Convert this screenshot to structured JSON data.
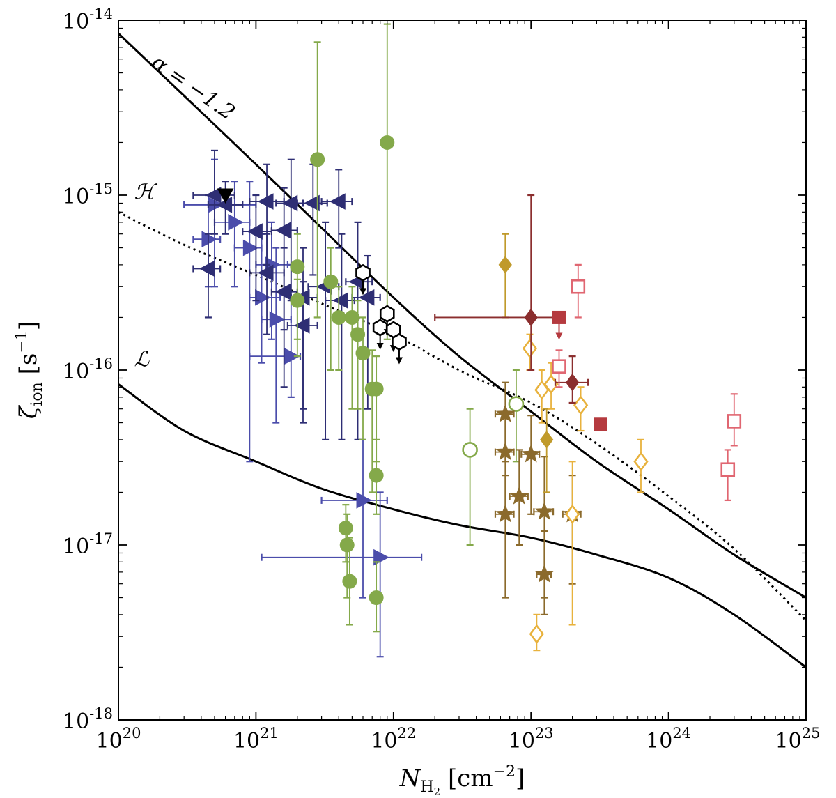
{
  "chart_data": {
    "type": "scatter",
    "title": "",
    "xscale": "log",
    "yscale": "log",
    "xlim": [
      1e+20,
      1e+25
    ],
    "ylim": [
      1e-18,
      1e-14
    ],
    "x_ticks": [
      {
        "base": "10",
        "exp": "20",
        "value": 1e+20
      },
      {
        "base": "10",
        "exp": "21",
        "value": 1e+21
      },
      {
        "base": "10",
        "exp": "22",
        "value": 1e+22
      },
      {
        "base": "10",
        "exp": "23",
        "value": 1e+23
      },
      {
        "base": "10",
        "exp": "24",
        "value": 1e+24
      },
      {
        "base": "10",
        "exp": "25",
        "value": 1e+25
      }
    ],
    "y_ticks": [
      {
        "base": "10",
        "exp": "-18",
        "value": 1e-18
      },
      {
        "base": "10",
        "exp": "-17",
        "value": 1e-17
      },
      {
        "base": "10",
        "exp": "-16",
        "value": 1e-16
      },
      {
        "base": "10",
        "exp": "-15",
        "value": 1e-15
      },
      {
        "base": "10",
        "exp": "-14",
        "value": 1e-14
      }
    ],
    "xlabel": {
      "main": "N",
      "sub": "H",
      "subsub": "2",
      "unit_pre": " [cm",
      "unit_exp": "−2",
      "unit_post": "]"
    },
    "ylabel": {
      "main": "ζ",
      "sub": "ion",
      "unit_pre": " [s",
      "unit_exp": "−1",
      "unit_post": "]"
    },
    "grid": false,
    "annotations": [
      {
        "text": "α = −1.2",
        "x": 1.7e+20,
        "y": 5.5e-15,
        "rotate": true
      },
      {
        "text": "ℋ",
        "x": 1.3e+20,
        "y": 9.5e-16
      },
      {
        "text": "ℒ",
        "x": 1.3e+20,
        "y": 1.05e-16
      }
    ],
    "curves": [
      {
        "name": "",
        "style": "solid",
        "x": [
          1e+20,
          3e+20,
          1e+21,
          3e+21,
          1e+22,
          3e+22,
          1e+23,
          3e+23,
          1e+24,
          3e+24,
          1e+25
        ],
        "y": [
          8.4e-15,
          3.7e-15,
          1.5e-15,
          6.5e-16,
          2.6e-16,
          1.2e-16,
          5.8e-17,
          3e-17,
          1.6e-17,
          8.8e-18,
          5e-18
        ]
      },
      {
        "name": "",
        "style": "dotted",
        "x": [
          1e+20,
          3e+20,
          1e+21,
          3e+21,
          1e+22,
          3e+22,
          1e+23,
          3e+23,
          1e+24,
          3e+24,
          1e+25
        ],
        "y": [
          8e-16,
          5.2e-16,
          3.5e-16,
          2.4e-16,
          1.6e-16,
          1e-16,
          6.5e-17,
          3.8e-17,
          1.9e-17,
          9.5e-18,
          3.7e-18
        ]
      },
      {
        "name": "",
        "style": "solid",
        "x": [
          1e+20,
          3e+20,
          1e+21,
          3e+21,
          1e+22,
          3e+22,
          1e+23,
          3e+23,
          1e+24,
          3e+24,
          1e+25
        ],
        "y": [
          8.3e-17,
          4.5e-17,
          3e-17,
          2.1e-17,
          1.6e-17,
          1.3e-17,
          1.1e-17,
          8.8e-18,
          6.5e-18,
          4e-18,
          2e-18
        ]
      }
    ],
    "series": [
      {
        "name": "",
        "marker": "triangle-right",
        "color": "#4b4dab",
        "filled": true,
        "points": [
          {
            "x": 5e+20,
            "y": 8.8e-16,
            "xerr": [
              3e+20,
              1e+21
            ],
            "yerr": [
              3e-16,
              1.6e-15
            ]
          },
          {
            "x": 7e+20,
            "y": 7e-16,
            "xerr": [
              5e+20,
              9e+20
            ],
            "yerr": [
              3e-16,
              1.2e-15
            ]
          },
          {
            "x": 9e+20,
            "y": 5e-16,
            "xerr": [
              7e+20,
              1.1e+21
            ],
            "yerr": [
              3e-17,
              1.2e-15
            ]
          },
          {
            "x": 1.1e+21,
            "y": 2.6e-16,
            "xerr": [
              9e+20,
              1.5e+21
            ],
            "yerr": [
              1.1e-16,
              6e-16
            ]
          },
          {
            "x": 1.3e+21,
            "y": 4e-16,
            "xerr": [
              1e+21,
              1.7e+21
            ],
            "yerr": [
              1.5e-16,
              7e-16
            ]
          },
          {
            "x": 1.4e+21,
            "y": 1.95e-16,
            "xerr": [
              1.1e+21,
              1.8e+21
            ],
            "yerr": [
              5e-17,
              5e-16
            ]
          },
          {
            "x": 1.8e+21,
            "y": 1.2e-16,
            "xerr": [
              9e+20,
              2.1e+21
            ],
            "yerr": [
              7e-17,
              4e-16
            ]
          },
          {
            "x": 4.5e+20,
            "y": 5.6e-16,
            "xerr": [
              3.5e+20,
              5.5e+20
            ],
            "yerr": [
              3e-16,
              1e-15
            ]
          },
          {
            "x": 6e+21,
            "y": 1.8e-17,
            "xerr": [
              3e+21,
              9e+21
            ],
            "yerr": [
              5e-18,
              4e-17
            ]
          },
          {
            "x": 8e+21,
            "y": 8.5e-18,
            "xerr": [
              1.1e+21,
              1.6e+22
            ],
            "yerr": [
              2.3e-18,
              2e-17
            ]
          }
        ]
      },
      {
        "name": "",
        "marker": "triangle-left",
        "color": "#2e2e74",
        "filled": true,
        "points": [
          {
            "x": 5e+20,
            "y": 1e-15,
            "xerr": [
              3.5e+20,
              7e+20
            ],
            "yerr": [
              6e-16,
              1.8e-15
            ]
          },
          {
            "x": 6e+20,
            "y": 8.8e-16,
            "xerr": [
              4.5e+20,
              8e+20
            ],
            "yerr": [
              6e-16,
              1.2e-15
            ]
          },
          {
            "x": 1.2e+21,
            "y": 9.2e-16,
            "xerr": [
              9e+20,
              1.6e+21
            ],
            "yerr": [
              4e-16,
              1.5e-15
            ]
          },
          {
            "x": 1.8e+21,
            "y": 9e-16,
            "xerr": [
              1.4e+21,
              2.2e+21
            ],
            "yerr": [
              2.5e-16,
              1.6e-15
            ]
          },
          {
            "x": 2.6e+21,
            "y": 9e-16,
            "xerr": [
              2e+21,
              3.3e+21
            ],
            "yerr": [
              3.5e-16,
              1.5e-15
            ]
          },
          {
            "x": 4e+21,
            "y": 9.2e-16,
            "xerr": [
              3e+21,
              5e+21
            ],
            "yerr": [
              5e-16,
              1.4e-15
            ]
          },
          {
            "x": 1e+21,
            "y": 6.2e-16,
            "xerr": [
              8e+20,
              1.3e+21
            ],
            "yerr": [
              2.5e-16,
              1e-15
            ]
          },
          {
            "x": 1.6e+21,
            "y": 6.3e-16,
            "xerr": [
              1.3e+21,
              2e+21
            ],
            "yerr": [
              1.7e-16,
              1.1e-15
            ]
          },
          {
            "x": 4.5e+20,
            "y": 3.8e-16,
            "xerr": [
              3.5e+20,
              5.5e+20
            ],
            "yerr": [
              2e-16,
              6e-16
            ]
          },
          {
            "x": 1.2e+21,
            "y": 3.6e-16,
            "xerr": [
              9e+20,
              1.6e+21
            ],
            "yerr": [
              1.6e-16,
              6e-16
            ]
          },
          {
            "x": 1.6e+21,
            "y": 2.8e-16,
            "xerr": [
              1.3e+21,
              2e+21
            ],
            "yerr": [
              8e-17,
              5e-16
            ]
          },
          {
            "x": 2.2e+21,
            "y": 2.6e-16,
            "xerr": [
              1.8e+21,
              2.8e+21
            ],
            "yerr": [
              6e-17,
              5e-16
            ]
          },
          {
            "x": 2.2e+21,
            "y": 1.8e-16,
            "xerr": [
              1.7e+21,
              2.8e+21
            ],
            "yerr": [
              5e-17,
              3.2e-16
            ]
          },
          {
            "x": 3.2e+21,
            "y": 3e-16,
            "xerr": [
              2.4e+21,
              4e+21
            ],
            "yerr": [
              4e-17,
              7e-16
            ]
          },
          {
            "x": 4.2e+21,
            "y": 2.5e-16,
            "xerr": [
              3.2e+21,
              5.2e+21
            ],
            "yerr": [
              4e-17,
              6e-16
            ]
          },
          {
            "x": 5.5e+21,
            "y": 3.2e-16,
            "xerr": [
              4.5e+21,
              7e+21
            ],
            "yerr": [
              4e-17,
              7e-16
            ]
          },
          {
            "x": 6.5e+21,
            "y": 2.6e-16,
            "xerr": [
              5e+21,
              8e+21
            ],
            "yerr": [
              6e-17,
              4.5e-16
            ]
          }
        ]
      },
      {
        "name": "",
        "marker": "circle",
        "color": "#84a94a",
        "filled": true,
        "points": [
          {
            "x": 2.8e+21,
            "y": 1.6e-15,
            "yerr": [
              2e-16,
              7.5e-15
            ]
          },
          {
            "x": 9e+21,
            "y": 2e-15,
            "yerr": [
              1.5e-16,
              9.5e-15
            ]
          },
          {
            "x": 2e+21,
            "y": 3.9e-16,
            "yerr": [
              1.2e-16,
              6e-16
            ]
          },
          {
            "x": 2e+21,
            "y": 2.5e-16,
            "yerr": [
              1.5e-16,
              3.3e-16
            ]
          },
          {
            "x": 3.5e+21,
            "y": 3.2e-16,
            "yerr": [
              1e-16,
              5e-16
            ]
          },
          {
            "x": 4e+21,
            "y": 2e-16,
            "yerr": [
              1e-16,
              3e-16
            ]
          },
          {
            "x": 5e+21,
            "y": 2e-16,
            "yerr": [
              6e-17,
              3e-16
            ]
          },
          {
            "x": 5.5e+21,
            "y": 1.6e-16,
            "yerr": [
              6e-17,
              2.5e-16
            ]
          },
          {
            "x": 6e+21,
            "y": 1.25e-16,
            "yerr": [
              4e-17,
              2e-16
            ]
          },
          {
            "x": 7e+21,
            "y": 7.8e-17,
            "yerr": [
              2e-17,
              1.3e-16
            ]
          },
          {
            "x": 7.5e+21,
            "y": 7.8e-17,
            "yerr": [
              3e-17,
              1.2e-16
            ]
          },
          {
            "x": 7.5e+21,
            "y": 2.5e-17,
            "yerr": [
              1.5e-17,
              4e-17
            ]
          },
          {
            "x": 4.5e+21,
            "y": 1.25e-17,
            "yerr": [
              8e-18,
              1.7e-17
            ]
          },
          {
            "x": 4.6e+21,
            "y": 1e-17,
            "yerr": [
              5e-18,
              1.5e-17
            ]
          },
          {
            "x": 4.8e+21,
            "y": 6.2e-18,
            "yerr": [
              3.5e-18,
              1.1e-17
            ]
          },
          {
            "x": 7.5e+21,
            "y": 5e-18,
            "yerr": [
              3.2e-18,
              8e-18
            ]
          }
        ]
      },
      {
        "name": "",
        "marker": "circle",
        "color": "#84a94a",
        "filled": false,
        "points": [
          {
            "x": 3.6e+22,
            "y": 3.5e-17,
            "yerr": [
              1e-17,
              6e-17
            ]
          },
          {
            "x": 7.8e+22,
            "y": 6.4e-17,
            "yerr": [
              3e-17,
              1e-16
            ]
          }
        ]
      },
      {
        "name": "",
        "marker": "hexagon",
        "color": "#000000",
        "filled": false,
        "upper_limit": true,
        "points": [
          {
            "x": 6e+21,
            "y": 3.6e-16
          },
          {
            "x": 8e+21,
            "y": 1.75e-16
          },
          {
            "x": 9e+21,
            "y": 2.1e-16
          },
          {
            "x": 1e+22,
            "y": 1.7e-16
          },
          {
            "x": 1.1e+22,
            "y": 1.45e-16
          }
        ]
      },
      {
        "name": "",
        "marker": "triangle-down",
        "color": "#000000",
        "filled": true,
        "points": [
          {
            "x": 6e+20,
            "y": 1e-15
          }
        ]
      },
      {
        "name": "",
        "marker": "star",
        "color": "#8b6a2c",
        "filled": true,
        "points": [
          {
            "x": 6.5e+22,
            "y": 5.6e-17,
            "xerr": [
              5.5e+22,
              7.5e+22
            ],
            "yerr": [
              3e-17,
              8.5e-17
            ]
          },
          {
            "x": 6.5e+22,
            "y": 3.4e-17,
            "xerr": [
              5.5e+22,
              7.5e+22
            ],
            "yerr": [
              1.5e-17,
              5.5e-17
            ]
          },
          {
            "x": 1e+23,
            "y": 3.3e-17,
            "xerr": [
              8.5e+22,
              1.15e+23
            ],
            "yerr": [
              1.5e-17,
              5.5e-17
            ]
          },
          {
            "x": 8.2e+22,
            "y": 1.9e-17,
            "xerr": [
              7e+22,
              9.5e+22
            ],
            "yerr": [
              1e-17,
              3.5e-17
            ]
          },
          {
            "x": 6.5e+22,
            "y": 1.5e-17,
            "xerr": [
              5.5e+22,
              7.5e+22
            ],
            "yerr": [
              5e-18,
              2.5e-17
            ]
          },
          {
            "x": 1.25e+23,
            "y": 1.55e-17,
            "xerr": [
              1.05e+23,
              1.45e+23
            ],
            "yerr": [
              5e-18,
              3.2e-17
            ]
          },
          {
            "x": 1.25e+23,
            "y": 6.8e-18,
            "xerr": [
              1.1e+23,
              1.4e+23
            ],
            "yerr": [
              4e-18,
              1.2e-17
            ]
          },
          {
            "x": 2e+23,
            "y": 1.5e-17,
            "xerr": [
              1.7e+23,
              2.3e+23
            ],
            "yerr": [
              6e-18,
              2.5e-17
            ]
          }
        ]
      },
      {
        "name": "",
        "marker": "diamond",
        "color": "#c09a2b",
        "filled": true,
        "points": [
          {
            "x": 6.5e+22,
            "y": 4e-16,
            "yerr": [
              2e-16,
              6e-16
            ]
          },
          {
            "x": 1.3e+23,
            "y": 4e-17,
            "yerr": [
              2e-17,
              6e-17
            ]
          }
        ]
      },
      {
        "name": "",
        "marker": "diamond",
        "color": "#e8b23d",
        "filled": false,
        "points": [
          {
            "x": 9.8e+22,
            "y": 1.33e-16,
            "yerr": [
              1e-16,
              1.6e-16
            ]
          },
          {
            "x": 1.2e+23,
            "y": 7.7e-17,
            "yerr": [
              5e-17,
              1e-16
            ]
          },
          {
            "x": 1.4e+23,
            "y": 8.3e-17,
            "yerr": [
              6e-17,
              1.1e-16
            ]
          },
          {
            "x": 2.3e+23,
            "y": 6.3e-17,
            "yerr": [
              4.5e-17,
              8e-17
            ]
          },
          {
            "x": 6.3e+23,
            "y": 3e-17,
            "yerr": [
              2e-17,
              4e-17
            ]
          },
          {
            "x": 2e+23,
            "y": 1.5e-17,
            "yerr": [
              3.5e-18,
              3e-17
            ]
          },
          {
            "x": 1.1e+23,
            "y": 3.1e-18,
            "yerr": [
              2.5e-18,
              4e-18
            ]
          }
        ]
      },
      {
        "name": "",
        "marker": "diamond",
        "color": "#8b2e2e",
        "filled": true,
        "points": [
          {
            "x": 1e+23,
            "y": 2e-16,
            "xerr": [
              2e+22,
              1.5e+23
            ],
            "yerr": [
              1e-16,
              1e-15
            ]
          },
          {
            "x": 2e+23,
            "y": 8.5e-17,
            "xerr": [
              1.5e+23,
              2.6e+23
            ],
            "yerr": [
              6.5e-17,
              1.2e-16
            ]
          }
        ]
      },
      {
        "name": "",
        "marker": "square",
        "color": "#b53a3f",
        "filled": true,
        "points": [
          {
            "x": 1.6e+23,
            "y": 2e-16,
            "upper_limit": true
          },
          {
            "x": 3.2e+23,
            "y": 4.9e-17
          }
        ]
      },
      {
        "name": "",
        "marker": "square",
        "color": "#e06671",
        "filled": false,
        "points": [
          {
            "x": 2.2e+23,
            "y": 3e-16,
            "yerr": [
              2e-16,
              4e-16
            ]
          },
          {
            "x": 1.6e+23,
            "y": 1.05e-16,
            "yerr": [
              8e-17,
              1.3e-16
            ]
          },
          {
            "x": 3e+24,
            "y": 5.1e-17,
            "yerr": [
              3.7e-17,
              7.3e-17
            ]
          },
          {
            "x": 2.7e+24,
            "y": 2.7e-17,
            "yerr": [
              1.8e-17,
              3.5e-17
            ]
          }
        ]
      }
    ]
  }
}
